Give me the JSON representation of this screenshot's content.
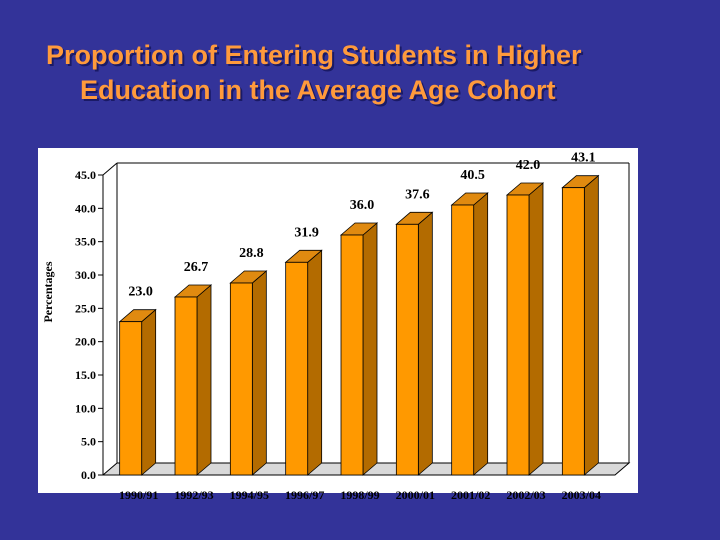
{
  "slide": {
    "title_line1": "Proportion of Entering Students in Higher",
    "title_line2": "Education in the Average Age Cohort"
  },
  "colors": {
    "background": "#333399",
    "bar_front": "#ff9900",
    "bar_side": "#b36b00",
    "bar_top": "#e08a10",
    "title": "#ff9a3c"
  },
  "chart_data": {
    "type": "bar",
    "title": "Proportion of Entering Students in Higher Education in the Average Age Cohort",
    "ylabel": "Percentages",
    "xlabel": "",
    "categories": [
      "1990/91",
      "1992/93",
      "1994/95",
      "1996/97",
      "1998/99",
      "2000/01",
      "2001/02",
      "2002/03",
      "2003/04"
    ],
    "values": [
      23.0,
      26.7,
      28.8,
      31.9,
      36.0,
      37.6,
      40.5,
      42.0,
      43.1
    ],
    "value_labels": [
      "23.0",
      "26.7",
      "28.8",
      "31.9",
      "36.0",
      "37.6",
      "40.5",
      "42.0",
      "43.1"
    ],
    "ylim": [
      0,
      45
    ],
    "yticks": [
      0,
      5,
      10,
      15,
      20,
      25,
      30,
      35,
      40,
      45
    ],
    "ytick_labels": [
      "0.0",
      "5.0",
      "10.0",
      "15.0",
      "20.0",
      "25.0",
      "30.0",
      "35.0",
      "40.0",
      "45.0"
    ],
    "grid": false,
    "legend": "none",
    "style": "3d"
  }
}
